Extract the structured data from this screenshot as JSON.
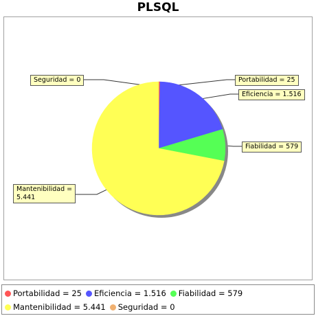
{
  "chart_data": {
    "type": "pie",
    "title": "PLSQL",
    "slices": [
      {
        "label": "Portabilidad",
        "value": 25,
        "display": "25",
        "color": "#ff5555"
      },
      {
        "label": "Eficiencia",
        "value": 1516,
        "display": "1.516",
        "color": "#5555ff"
      },
      {
        "label": "Fiabilidad",
        "value": 579,
        "display": "579",
        "color": "#55ff55"
      },
      {
        "label": "Mantenibilidad",
        "value": 5441,
        "display": "5.441",
        "color": "#ffff55"
      },
      {
        "label": "Seguridad",
        "value": 0,
        "display": "0",
        "color": "#f0b070"
      }
    ],
    "legend_position": "bottom"
  },
  "labels": {
    "portabilidad": "Portabilidad = 25",
    "eficiencia": "Eficiencia = 1.516",
    "fiabilidad": "Fiabilidad = 579",
    "mantenibilidad_line1": "Mantenibilidad =",
    "mantenibilidad_line2": "5.441",
    "seguridad": "Seguridad = 0"
  },
  "legend": {
    "items": [
      {
        "text": "Portabilidad = 25",
        "color": "#ff5555"
      },
      {
        "text": "Eficiencia = 1.516",
        "color": "#5555ff"
      },
      {
        "text": "Fiabilidad = 579",
        "color": "#55ff55"
      },
      {
        "text": "Mantenibilidad = 5.441",
        "color": "#ffff55"
      },
      {
        "text": "Seguridad = 0",
        "color": "#f0b070"
      }
    ]
  }
}
